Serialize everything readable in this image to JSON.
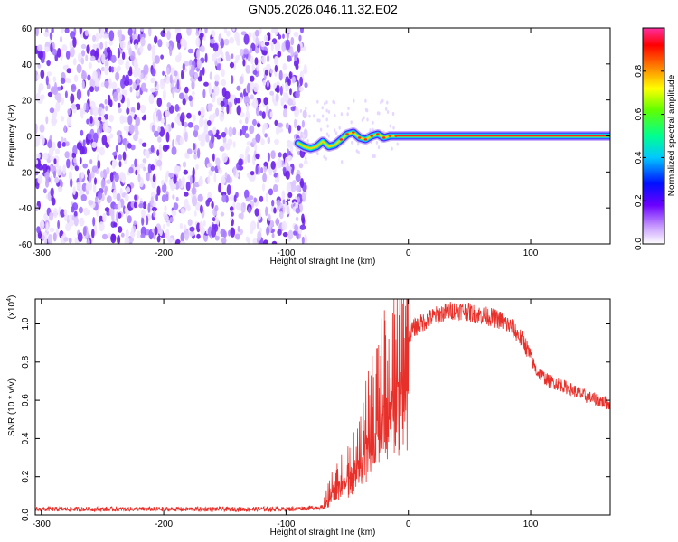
{
  "title": "GN05.2026.046.11.32.E02",
  "chart_data": [
    {
      "type": "heatmap",
      "xlabel": "Height of straight line (km)",
      "ylabel": "Frequency (Hz)",
      "xlim": [
        -305,
        165
      ],
      "ylim": [
        -60,
        60
      ],
      "x_ticks": [
        -300,
        -200,
        -100,
        0,
        100
      ],
      "y_ticks": [
        -60,
        -40,
        -20,
        0,
        20,
        40,
        60
      ],
      "noise_region_x": [
        -305,
        -88
      ],
      "signal_track": [
        {
          "x": -90,
          "y": -4
        },
        {
          "x": -85,
          "y": -6
        },
        {
          "x": -80,
          "y": -7
        },
        {
          "x": -75,
          "y": -6
        },
        {
          "x": -70,
          "y": -3
        },
        {
          "x": -65,
          "y": -6
        },
        {
          "x": -60,
          "y": -5
        },
        {
          "x": -55,
          "y": -2
        },
        {
          "x": -50,
          "y": 1
        },
        {
          "x": -45,
          "y": 2
        },
        {
          "x": -40,
          "y": -1
        },
        {
          "x": -35,
          "y": -2
        },
        {
          "x": -30,
          "y": 0
        },
        {
          "x": -25,
          "y": 1
        },
        {
          "x": -20,
          "y": -1
        },
        {
          "x": -15,
          "y": 0
        },
        {
          "x": -10,
          "y": 0
        },
        {
          "x": 0,
          "y": 0
        },
        {
          "x": 165,
          "y": 0
        }
      ],
      "colorbar": {
        "label": "Normalized spectral amplitude",
        "range": [
          0,
          1
        ],
        "ticks": [
          "0.0",
          "0.2",
          "0.4",
          "0.6",
          "0.8"
        ]
      },
      "grid": false
    },
    {
      "type": "line",
      "xlabel": "Height of straight line (km)",
      "ylabel": "SNR (10 * v/v)",
      "scale_label": "(x10",
      "scale_exp": "4",
      "xlim": [
        -305,
        165
      ],
      "ylim": [
        0,
        1.13
      ],
      "x_ticks": [
        -300,
        -200,
        -100,
        0,
        100
      ],
      "y_ticks": [
        "0.0",
        "0.2",
        "0.4",
        "0.6",
        "0.8",
        "1.0"
      ],
      "series": [
        {
          "color": "#e8302a",
          "envelope": [
            {
              "x": -305,
              "y": 0.03
            },
            {
              "x": -100,
              "y": 0.03
            },
            {
              "x": -70,
              "y": 0.04
            },
            {
              "x": -65,
              "y": 0.12
            },
            {
              "x": -55,
              "y": 0.22
            },
            {
              "x": -45,
              "y": 0.28
            },
            {
              "x": -35,
              "y": 0.45
            },
            {
              "x": -25,
              "y": 0.62
            },
            {
              "x": -15,
              "y": 0.78
            },
            {
              "x": -5,
              "y": 0.9
            },
            {
              "x": 5,
              "y": 0.98
            },
            {
              "x": 15,
              "y": 1.02
            },
            {
              "x": 25,
              "y": 1.05
            },
            {
              "x": 35,
              "y": 1.07
            },
            {
              "x": 45,
              "y": 1.07
            },
            {
              "x": 55,
              "y": 1.05
            },
            {
              "x": 65,
              "y": 1.04
            },
            {
              "x": 75,
              "y": 1.02
            },
            {
              "x": 85,
              "y": 0.98
            },
            {
              "x": 95,
              "y": 0.9
            },
            {
              "x": 105,
              "y": 0.75
            },
            {
              "x": 115,
              "y": 0.7
            },
            {
              "x": 125,
              "y": 0.68
            },
            {
              "x": 135,
              "y": 0.65
            },
            {
              "x": 145,
              "y": 0.62
            },
            {
              "x": 155,
              "y": 0.6
            },
            {
              "x": 165,
              "y": 0.58
            }
          ]
        }
      ],
      "grid": false
    }
  ]
}
